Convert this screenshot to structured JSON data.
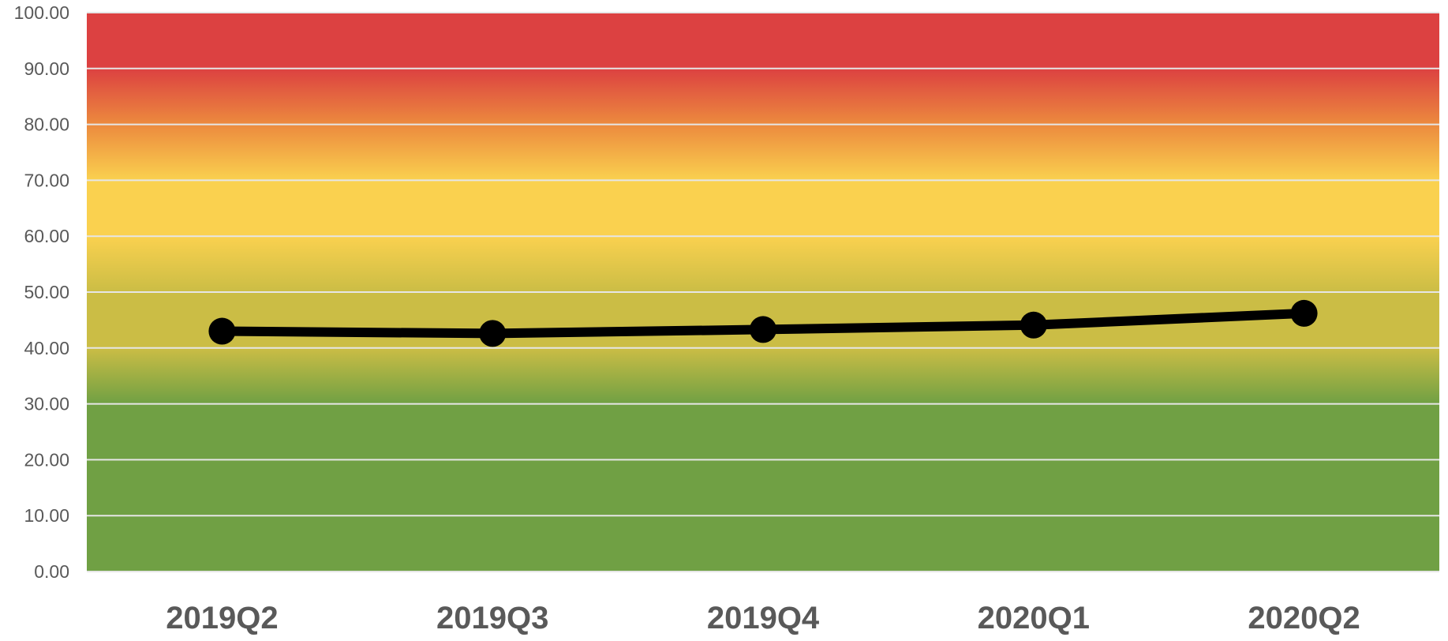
{
  "chart_data": {
    "type": "line",
    "title": "",
    "xlabel": "",
    "ylabel": "",
    "categories": [
      "2019Q2",
      "2019Q3",
      "2019Q4",
      "2020Q1",
      "2020Q2"
    ],
    "series": [
      {
        "values": [
          43.0,
          42.6,
          43.3,
          44.1,
          46.2
        ],
        "color": "#000000"
      }
    ],
    "ylim": [
      0,
      100
    ],
    "yticks": [
      0,
      10,
      20,
      30,
      40,
      50,
      60,
      70,
      80,
      90,
      100
    ],
    "ytick_labels": [
      "0.00",
      "10.00",
      "20.00",
      "30.00",
      "40.00",
      "50.00",
      "60.00",
      "70.00",
      "80.00",
      "90.00",
      "100.00"
    ],
    "grid": true,
    "legend": "none",
    "background_bands": [
      {
        "from": 0,
        "to": 30,
        "color": "#70a044"
      },
      {
        "from": 40,
        "to": 50,
        "color": "#cbbd45"
      },
      {
        "from": 60,
        "to": 70,
        "color": "#fad14f"
      },
      {
        "from": 90,
        "to": 100,
        "color": "#dc4141"
      }
    ]
  }
}
